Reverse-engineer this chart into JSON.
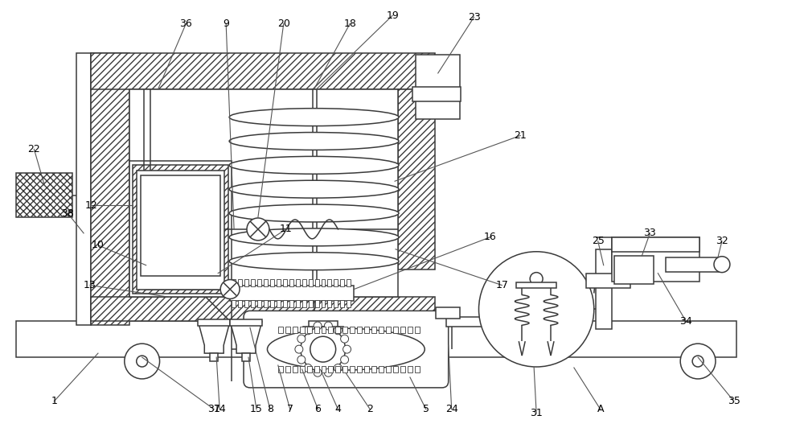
{
  "bg_color": "#ffffff",
  "line_color": "#3a3a3a",
  "figsize": [
    10.0,
    5.37
  ],
  "dpi": 100,
  "lw": 1.1
}
